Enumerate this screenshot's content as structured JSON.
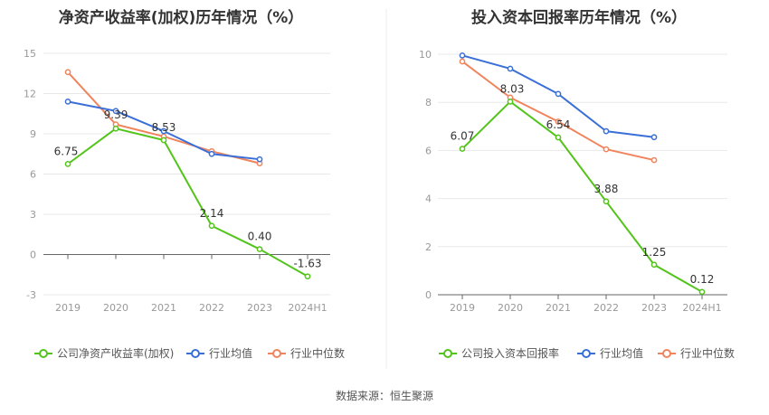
{
  "source": "数据来源：恒生聚源",
  "chart_data": [
    {
      "type": "line",
      "title": "净资产收益率(加权)历年情况（%）",
      "categories": [
        "2019",
        "2020",
        "2021",
        "2022",
        "2023",
        "2024H1"
      ],
      "ylim": [
        -3,
        15
      ],
      "yticks": [
        -3,
        0,
        3,
        6,
        9,
        12,
        15
      ],
      "ytick_labels": [
        "-3",
        "0",
        "3",
        "6",
        "9",
        "12",
        "15"
      ],
      "series": [
        {
          "name": "公司净资产收益率(加权)",
          "color": "#52c41a",
          "values": [
            6.75,
            9.39,
            8.53,
            2.14,
            0.4,
            -1.63
          ],
          "labels": [
            "6.75",
            "9.39",
            "8.53",
            "2.14",
            "0.40",
            "-1.63"
          ],
          "show_labels": true
        },
        {
          "name": "行业均值",
          "color": "#3a6fd8",
          "values": [
            11.4,
            10.7,
            9.2,
            7.5,
            7.1,
            null
          ],
          "show_labels": false
        },
        {
          "name": "行业中位数",
          "color": "#f0845c",
          "values": [
            13.6,
            9.7,
            8.8,
            7.7,
            6.8,
            null
          ],
          "show_labels": false
        }
      ]
    },
    {
      "type": "line",
      "title": "投入资本回报率历年情况（%）",
      "categories": [
        "2019",
        "2020",
        "2021",
        "2022",
        "2023",
        "2024H1"
      ],
      "ylim": [
        0,
        10
      ],
      "yticks": [
        0,
        2,
        4,
        6,
        8,
        10
      ],
      "ytick_labels": [
        "0",
        "2",
        "4",
        "6",
        "8",
        "10"
      ],
      "series": [
        {
          "name": "公司投入资本回报率",
          "color": "#52c41a",
          "values": [
            6.07,
            8.03,
            6.54,
            3.88,
            1.25,
            0.12
          ],
          "labels": [
            "6.07",
            "8.03",
            "6.54",
            "3.88",
            "1.25",
            "0.12"
          ],
          "show_labels": true
        },
        {
          "name": "行业均值",
          "color": "#3a6fd8",
          "values": [
            9.95,
            9.4,
            8.35,
            6.8,
            6.55,
            null
          ],
          "show_labels": false
        },
        {
          "name": "行业中位数",
          "color": "#f0845c",
          "values": [
            9.7,
            8.2,
            7.2,
            6.05,
            5.6,
            null
          ],
          "show_labels": false
        }
      ]
    }
  ]
}
